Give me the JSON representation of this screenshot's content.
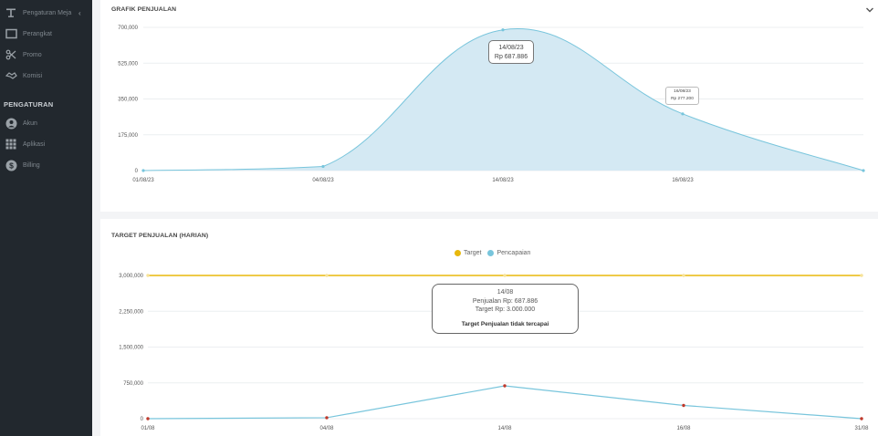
{
  "sidebar": {
    "items": [
      {
        "label": "Pengaturan Meja",
        "icon": "table-icon",
        "top": 4
      },
      {
        "label": "Perangkat",
        "icon": "device-icon",
        "top": 27
      },
      {
        "label": "Promo",
        "icon": "scissors-icon",
        "top": 50
      },
      {
        "label": "Komisi",
        "icon": "handshake-icon",
        "top": 73
      }
    ],
    "section_title": "PENGATURAN",
    "settings_items": [
      {
        "label": "Akun",
        "icon": "user-circle-icon",
        "top": 125
      },
      {
        "label": "Aplikasi",
        "icon": "grid-icon",
        "top": 148
      },
      {
        "label": "Billing",
        "icon": "dollar-circle-icon",
        "top": 171
      }
    ]
  },
  "sales_chart": {
    "title": "GRAFIK PENJUALAN",
    "tooltip_peak": {
      "date": "14/08/23",
      "value": "Rp 687.886"
    },
    "tooltip_small": {
      "date": "16/08/23",
      "value": "Rp 277.200"
    },
    "chart_data": {
      "type": "area",
      "x": [
        "01/08/23",
        "04/08/23",
        "14/08/23",
        "16/08/23",
        ""
      ],
      "y": [
        0,
        20000,
        687886,
        277200,
        0
      ],
      "yticks": [
        "0",
        "175,000",
        "350,000",
        "525,000",
        "700,000"
      ],
      "ylim": [
        0,
        700000
      ],
      "color": "#78c5dc",
      "fill": "#d4e9f3"
    }
  },
  "target_chart": {
    "title": "TARGET PENJUALAN (HARIAN)",
    "legend": [
      {
        "label": "Target",
        "color": "#e8b80c"
      },
      {
        "label": "Pencapaian",
        "color": "#78c5dc"
      }
    ],
    "tooltip": {
      "date": "14/08",
      "sales": "Penjualan Rp: 687.886",
      "target": "Target Rp: 3.000.000",
      "status": "Target Penjualan tidak tercapai"
    },
    "chart_data": {
      "type": "line",
      "categories": [
        "01/08",
        "04/08",
        "14/08",
        "16/08",
        "31/08"
      ],
      "series": [
        {
          "name": "Target",
          "values": [
            3000000,
            3000000,
            3000000,
            3000000,
            3000000
          ],
          "color": "#e8b80c"
        },
        {
          "name": "Pencapaian",
          "values": [
            0,
            20000,
            687886,
            277200,
            0
          ],
          "color": "#78c5dc"
        }
      ],
      "yticks": [
        "0",
        "750,000",
        "1,500,000",
        "2,250,000",
        "3,000,000"
      ],
      "ylim": [
        0,
        3000000
      ]
    }
  }
}
